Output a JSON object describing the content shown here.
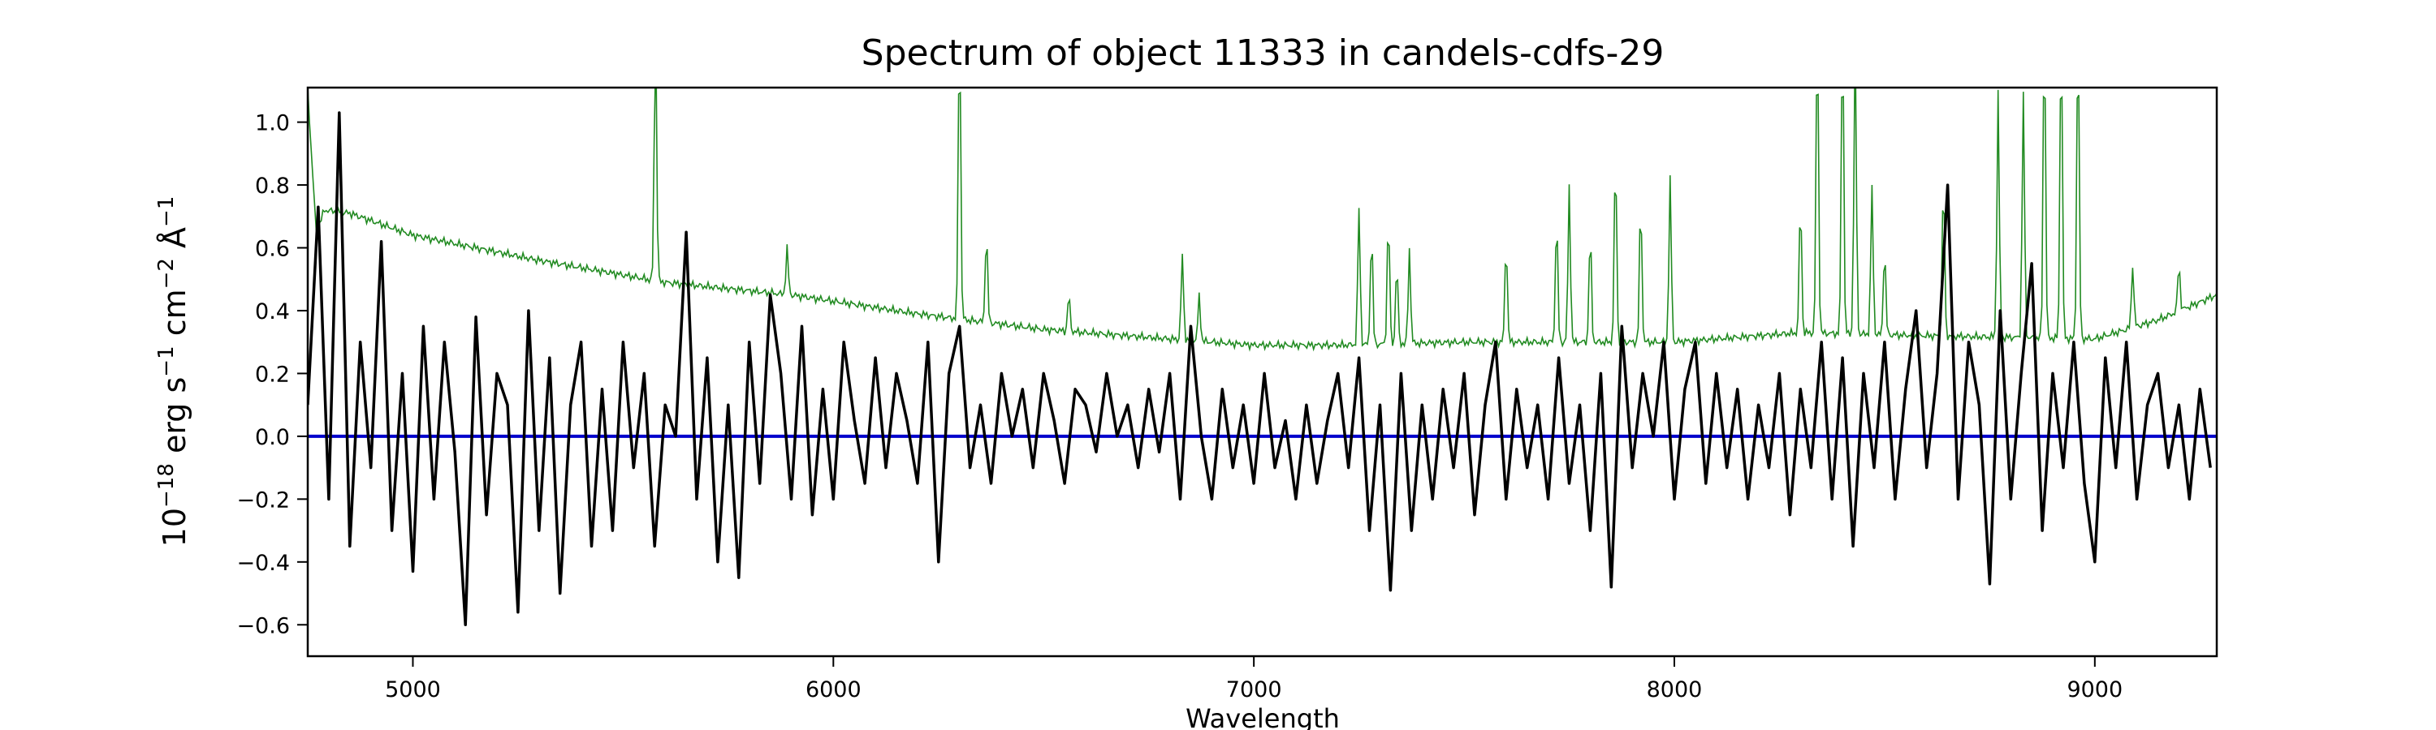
{
  "chart_data": {
    "type": "line",
    "title": "Spectrum of object 11333 in candels-cdfs-29",
    "xlabel": "Wavelength",
    "ylabel": {
      "base": "10",
      "exp0": "−18",
      "t1": " erg s",
      "exp1": "−1",
      "t2": " cm",
      "exp2": "−2",
      "t3": " Å",
      "exp3": "−1"
    },
    "xlim": [
      4750,
      9290
    ],
    "ylim": [
      -0.7,
      1.11
    ],
    "xticks": [
      5000,
      6000,
      7000,
      8000,
      9000
    ],
    "xtick_labels": [
      "5000",
      "6000",
      "7000",
      "8000",
      "9000"
    ],
    "yticks": [
      -0.6,
      -0.4,
      -0.2,
      0.0,
      0.2,
      0.4,
      0.6,
      0.8,
      1.0
    ],
    "ytick_labels": [
      "−0.6",
      "−0.4",
      "−0.2",
      "0.0",
      "0.2",
      "0.4",
      "0.6",
      "0.8",
      "1.0"
    ],
    "grid": false,
    "series": [
      {
        "name": "flux",
        "color": "#000000",
        "x_start": 4750,
        "x_step": 25,
        "values": [
          0.1,
          0.73,
          -0.2,
          1.03,
          -0.35,
          0.3,
          -0.1,
          0.62,
          -0.3,
          0.2,
          -0.43,
          0.35,
          -0.2,
          0.3,
          -0.05,
          -0.6,
          0.38,
          -0.25,
          0.2,
          0.1,
          -0.56,
          0.4,
          -0.3,
          0.25,
          -0.5,
          0.1,
          0.3,
          -0.35,
          0.15,
          -0.3,
          0.3,
          -0.1,
          0.2,
          -0.35,
          0.1,
          0.0,
          0.65,
          -0.2,
          0.25,
          -0.4,
          0.1,
          -0.45,
          0.3,
          -0.15,
          0.45,
          0.2,
          -0.2,
          0.35,
          -0.25,
          0.15,
          -0.2,
          0.3,
          0.05,
          -0.15,
          0.25,
          -0.1,
          0.2,
          0.05,
          -0.15,
          0.3,
          -0.4,
          0.2,
          0.35,
          -0.1,
          0.1,
          -0.15,
          0.2,
          0.0,
          0.15,
          -0.1,
          0.2,
          0.05,
          -0.15,
          0.15,
          0.1,
          -0.05,
          0.2,
          0.0,
          0.1,
          -0.1,
          0.15,
          -0.05,
          0.2,
          -0.2,
          0.35,
          0.0,
          -0.2,
          0.15,
          -0.1,
          0.1,
          -0.15,
          0.2,
          -0.1,
          0.05,
          -0.2,
          0.1,
          -0.15,
          0.05,
          0.2,
          -0.1,
          0.25,
          -0.3,
          0.1,
          -0.49,
          0.2,
          -0.3,
          0.1,
          -0.2,
          0.15,
          -0.1,
          0.2,
          -0.25,
          0.1,
          0.3,
          -0.2,
          0.15,
          -0.1,
          0.1,
          -0.2,
          0.25,
          -0.15,
          0.1,
          -0.3,
          0.2,
          -0.48,
          0.35,
          -0.1,
          0.2,
          0.0,
          0.3,
          -0.2,
          0.15,
          0.3,
          -0.15,
          0.2,
          -0.1,
          0.15,
          -0.2,
          0.1,
          -0.1,
          0.2,
          -0.25,
          0.15,
          -0.1,
          0.3,
          -0.2,
          0.25,
          -0.35,
          0.2,
          -0.1,
          0.3,
          -0.2,
          0.15,
          0.4,
          -0.1,
          0.2,
          0.8,
          -0.2,
          0.3,
          0.1,
          -0.47,
          0.4,
          -0.2,
          0.2,
          0.55,
          -0.3,
          0.2,
          -0.1,
          0.3,
          -0.15,
          -0.4,
          0.25,
          -0.1,
          0.3,
          -0.2,
          0.1,
          0.2,
          -0.1,
          0.1,
          -0.2,
          0.15,
          -0.1
        ]
      },
      {
        "name": "error",
        "color": "#228b22",
        "continuum": [
          [
            4750,
            1.1
          ],
          [
            4770,
            0.65
          ],
          [
            4790,
            0.72
          ],
          [
            4850,
            0.71
          ],
          [
            5000,
            0.64
          ],
          [
            5300,
            0.56
          ],
          [
            5600,
            0.49
          ],
          [
            5900,
            0.45
          ],
          [
            6200,
            0.39
          ],
          [
            6500,
            0.34
          ],
          [
            6800,
            0.31
          ],
          [
            7000,
            0.29
          ],
          [
            7200,
            0.29
          ],
          [
            7500,
            0.3
          ],
          [
            8000,
            0.3
          ],
          [
            8300,
            0.33
          ],
          [
            8600,
            0.32
          ],
          [
            9000,
            0.31
          ],
          [
            9150,
            0.37
          ],
          [
            9290,
            0.45
          ]
        ],
        "lines": [
          [
            5577,
            1.3
          ],
          [
            5890,
            0.6
          ],
          [
            6300,
            1.3
          ],
          [
            6364,
            0.65
          ],
          [
            6560,
            0.45
          ],
          [
            6830,
            0.58
          ],
          [
            6870,
            0.45
          ],
          [
            7250,
            0.73
          ],
          [
            7280,
            0.65
          ],
          [
            7320,
            0.7
          ],
          [
            7340,
            0.55
          ],
          [
            7370,
            0.6
          ],
          [
            7600,
            0.62
          ],
          [
            7720,
            0.7
          ],
          [
            7750,
            0.8
          ],
          [
            7800,
            0.65
          ],
          [
            7860,
            0.9
          ],
          [
            7920,
            0.75
          ],
          [
            7990,
            0.82
          ],
          [
            8300,
            0.75
          ],
          [
            8340,
            1.3
          ],
          [
            8400,
            1.3
          ],
          [
            8430,
            1.3
          ],
          [
            8470,
            0.8
          ],
          [
            8500,
            0.6
          ],
          [
            8640,
            0.82
          ],
          [
            8770,
            1.1
          ],
          [
            8830,
            1.1
          ],
          [
            8880,
            1.3
          ],
          [
            8920,
            1.3
          ],
          [
            8960,
            1.3
          ],
          [
            9090,
            0.55
          ],
          [
            9200,
            0.55
          ]
        ]
      },
      {
        "name": "zero",
        "color": "#0000cc",
        "y": 0.0
      }
    ]
  }
}
